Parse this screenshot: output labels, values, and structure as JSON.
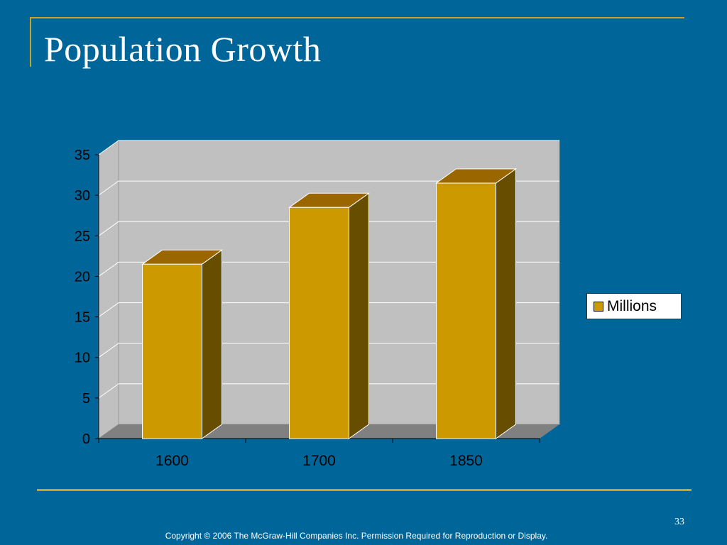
{
  "slide": {
    "title": "Population Growth",
    "number": "33",
    "footer": "Copyright © 2006 The McGraw-Hill Companies Inc. Permission Required for Reproduction or Display."
  },
  "chart_data": {
    "type": "bar",
    "style": "3d-column",
    "categories": [
      "1600",
      "1700",
      "1850"
    ],
    "series": [
      {
        "name": "Millions",
        "values": [
          21.5,
          28.5,
          31.5
        ]
      }
    ],
    "title": "",
    "xlabel": "",
    "ylabel": "",
    "ylim": [
      0,
      35
    ],
    "yticks": [
      "0",
      "5",
      "10",
      "15",
      "20",
      "25",
      "30",
      "35"
    ],
    "grid": true,
    "legend": "right",
    "colors": {
      "bar_front": "#cc9900",
      "bar_top": "#996600",
      "bar_side": "#664d00",
      "wall": "#c0c0c0",
      "floor": "#808080",
      "gridline": "#ffffff",
      "axis_text": "#000000"
    }
  },
  "colors": {
    "background": "#006699",
    "accent": "#c9a227"
  }
}
